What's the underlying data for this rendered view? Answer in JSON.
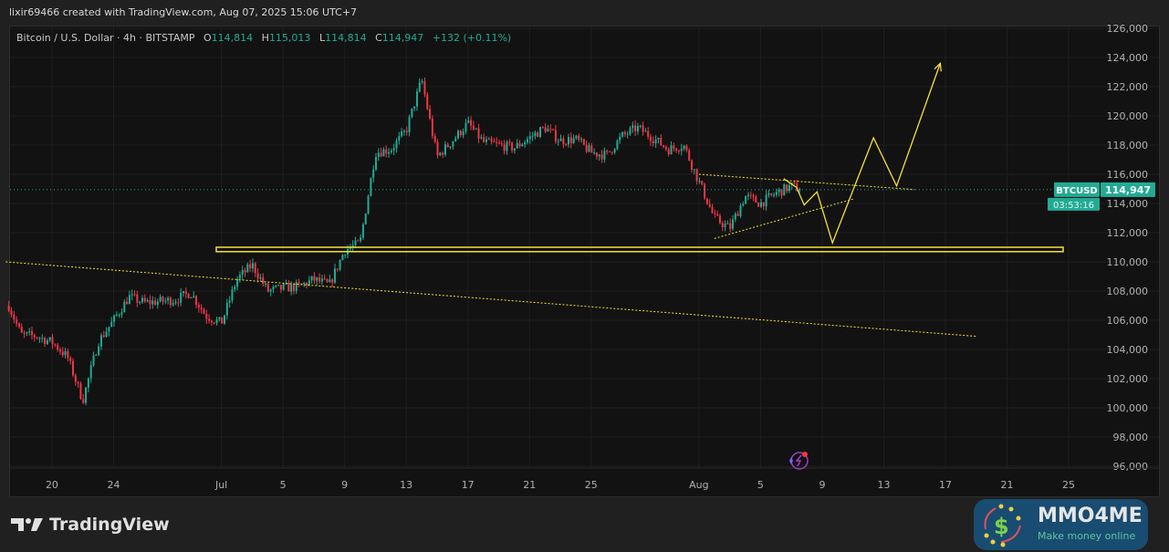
{
  "credit": "lixir69466 created with TradingView.com, Aug 07, 2025 15:06 UTC+7",
  "legend": {
    "symbol": "Bitcoin / U.S. Dollar · 4h · BITSTAMP",
    "open_label": "O",
    "open": "114,814",
    "high_label": "H",
    "high": "115,013",
    "low_label": "L",
    "low": "114,814",
    "close_label": "C",
    "close": "114,947",
    "change": "+132 (+0.11%)"
  },
  "price_tag": {
    "ticker": "BTCUSD",
    "price": "114,947",
    "countdown": "03:53:16"
  },
  "logo": {
    "text": "TradingView"
  },
  "watermark": {
    "title": "MMO4ME",
    "subtitle": "Make money online"
  },
  "colors": {
    "up": "#22ab94",
    "down": "#f23645",
    "drawing": "#f5e23a",
    "background": "#121212"
  },
  "chart_data": {
    "type": "candlestick",
    "interval": "4h",
    "ylim": [
      96000,
      126000
    ],
    "y_ticks": [
      "126,000",
      "124,000",
      "122,000",
      "120,000",
      "118,000",
      "116,000",
      "114,000",
      "112,000",
      "110,000",
      "108,000",
      "106,000",
      "104,000",
      "102,000",
      "100,000",
      "98,000",
      "96,000"
    ],
    "x_ticks": [
      "20",
      "24",
      "Jul",
      "5",
      "9",
      "13",
      "17",
      "21",
      "25",
      "Aug",
      "5",
      "9",
      "13",
      "17",
      "21",
      "25"
    ],
    "x_tick_dates": [
      "2025-06-20",
      "2025-06-24",
      "2025-07-01",
      "2025-07-05",
      "2025-07-09",
      "2025-07-13",
      "2025-07-17",
      "2025-07-21",
      "2025-07-25",
      "2025-08-01",
      "2025-08-05",
      "2025-08-09",
      "2025-08-13",
      "2025-08-17",
      "2025-08-21",
      "2025-08-25"
    ],
    "grid": true,
    "last_price": 114947,
    "approx_price_path": [
      [
        "2025-06-17",
        107500
      ],
      [
        "2025-06-18",
        105000
      ],
      [
        "2025-06-19",
        104900
      ],
      [
        "2025-06-20",
        104500
      ],
      [
        "2025-06-21",
        103500
      ],
      [
        "2025-06-22",
        100500
      ],
      [
        "2025-06-23",
        104500
      ],
      [
        "2025-06-24",
        106000
      ],
      [
        "2025-06-25",
        107600
      ],
      [
        "2025-06-26",
        107200
      ],
      [
        "2025-06-27",
        107300
      ],
      [
        "2025-06-28",
        107400
      ],
      [
        "2025-06-29",
        107900
      ],
      [
        "2025-06-30",
        106300
      ],
      [
        "2025-07-01",
        105800
      ],
      [
        "2025-07-02",
        108800
      ],
      [
        "2025-07-03",
        109800
      ],
      [
        "2025-07-04",
        108000
      ],
      [
        "2025-07-05",
        108200
      ],
      [
        "2025-07-06",
        108300
      ],
      [
        "2025-07-07",
        108800
      ],
      [
        "2025-07-08",
        108400
      ],
      [
        "2025-07-09",
        110800
      ],
      [
        "2025-07-10",
        111300
      ],
      [
        "2025-07-11",
        117500
      ],
      [
        "2025-07-12",
        117700
      ],
      [
        "2025-07-13",
        119000
      ],
      [
        "2025-07-14",
        122500
      ],
      [
        "2025-07-15",
        117200
      ],
      [
        "2025-07-16",
        118300
      ],
      [
        "2025-07-17",
        119500
      ],
      [
        "2025-07-18",
        118200
      ],
      [
        "2025-07-19",
        118000
      ],
      [
        "2025-07-20",
        117800
      ],
      [
        "2025-07-21",
        118500
      ],
      [
        "2025-07-22",
        119200
      ],
      [
        "2025-07-23",
        118300
      ],
      [
        "2025-07-24",
        118400
      ],
      [
        "2025-07-25",
        117500
      ],
      [
        "2025-07-26",
        117300
      ],
      [
        "2025-07-27",
        118600
      ],
      [
        "2025-07-28",
        119200
      ],
      [
        "2025-07-29",
        118500
      ],
      [
        "2025-07-30",
        117700
      ],
      [
        "2025-07-31",
        118000
      ],
      [
        "2025-08-01",
        115500
      ],
      [
        "2025-08-02",
        113000
      ],
      [
        "2025-08-03",
        112300
      ],
      [
        "2025-08-04",
        114500
      ],
      [
        "2025-08-05",
        114000
      ],
      [
        "2025-08-06",
        114700
      ],
      [
        "2025-08-07",
        115200
      ],
      [
        "2025-08-07T15:00",
        114947
      ]
    ],
    "drawings": {
      "support_zone": [
        110700,
        111000
      ],
      "descending_trendline": [
        [
          "2025-06-17",
          110000
        ],
        [
          "2025-08-19",
          104900
        ]
      ],
      "triangle_upper": [
        [
          "2025-08-01",
          116000
        ],
        [
          "2025-08-15",
          114950
        ]
      ],
      "triangle_lower": [
        [
          "2025-08-02",
          111600
        ],
        [
          "2025-08-11",
          114300
        ]
      ],
      "projection_path": [
        [
          "2025-08-06T12:00",
          115700
        ],
        [
          "2025-08-07T08:00",
          115100
        ],
        [
          "2025-08-07T20:00",
          113900
        ],
        [
          "2025-08-08T16:00",
          114800
        ],
        [
          "2025-08-09T16:00",
          111300
        ],
        [
          "2025-08-12T08:00",
          118500
        ],
        [
          "2025-08-13T20:00",
          115200
        ],
        [
          "2025-08-16T16:00",
          123600
        ]
      ]
    }
  }
}
